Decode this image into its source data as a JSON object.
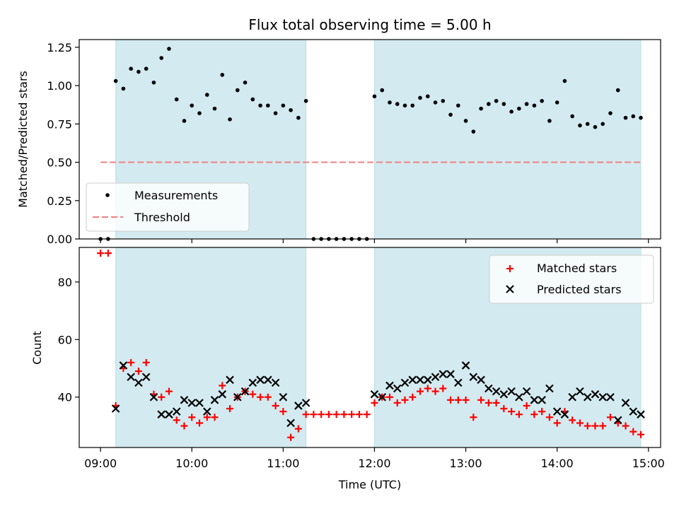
{
  "title": "Flux total observing time = 5.00 h",
  "colors": {
    "band": "#d3eaf0",
    "measurement": "#000000",
    "threshold": "#f08080",
    "matched": "#ff0000",
    "predicted": "#000000"
  },
  "chart_data": [
    {
      "type": "scatter",
      "panel": "top",
      "xlabel": "",
      "ylabel": "Matched/Predicted stars",
      "xlim": [
        "08:46",
        "15:08"
      ],
      "ylim": [
        0,
        1.3
      ],
      "yticks": [
        "0.00",
        "0.25",
        "0.50",
        "0.75",
        "1.00",
        "1.25"
      ],
      "shaded_intervals": [
        [
          "09:10",
          "11:15"
        ],
        [
          "12:00",
          "14:55"
        ]
      ],
      "legend_position": "lower-left",
      "series": [
        {
          "name": "Measurements",
          "marker": "dot",
          "x": [
            "09:00",
            "09:05",
            "09:10",
            "09:15",
            "09:20",
            "09:25",
            "09:30",
            "09:35",
            "09:40",
            "09:45",
            "09:50",
            "09:55",
            "10:00",
            "10:05",
            "10:10",
            "10:15",
            "10:20",
            "10:25",
            "10:30",
            "10:35",
            "10:40",
            "10:45",
            "10:50",
            "10:55",
            "11:00",
            "11:05",
            "11:10",
            "11:15",
            "11:20",
            "11:25",
            "11:30",
            "11:35",
            "11:40",
            "11:45",
            "11:50",
            "11:55",
            "12:00",
            "12:05",
            "12:10",
            "12:15",
            "12:20",
            "12:25",
            "12:30",
            "12:35",
            "12:40",
            "12:45",
            "12:50",
            "12:55",
            "13:00",
            "13:05",
            "13:10",
            "13:15",
            "13:20",
            "13:25",
            "13:30",
            "13:35",
            "13:40",
            "13:45",
            "13:50",
            "13:55",
            "14:00",
            "14:05",
            "14:10",
            "14:15",
            "14:20",
            "14:25",
            "14:30",
            "14:35",
            "14:40",
            "14:45",
            "14:50",
            "14:55"
          ],
          "y": [
            0.0,
            0.0,
            1.03,
            0.98,
            1.11,
            1.09,
            1.11,
            1.02,
            1.18,
            1.24,
            0.91,
            0.77,
            0.87,
            0.82,
            0.94,
            0.85,
            1.07,
            0.78,
            0.97,
            1.02,
            0.91,
            0.87,
            0.87,
            0.82,
            0.87,
            0.84,
            0.79,
            0.9,
            0.0,
            0.0,
            0.0,
            0.0,
            0.0,
            0.0,
            0.0,
            0.0,
            0.93,
            0.97,
            0.89,
            0.88,
            0.87,
            0.87,
            0.92,
            0.93,
            0.89,
            0.9,
            0.81,
            0.87,
            0.77,
            0.7,
            0.85,
            0.88,
            0.9,
            0.88,
            0.83,
            0.85,
            0.88,
            0.87,
            0.9,
            0.77,
            0.89,
            1.03,
            0.8,
            0.74,
            0.75,
            0.73,
            0.75,
            0.82,
            0.97,
            0.79,
            0.8,
            0.79
          ]
        },
        {
          "name": "Threshold",
          "style": "dashed",
          "x": [
            "09:00",
            "14:55"
          ],
          "y": [
            0.5,
            0.5
          ]
        }
      ]
    },
    {
      "type": "scatter",
      "panel": "bottom",
      "xlabel": "Time (UTC)",
      "ylabel": "Count",
      "xlim": [
        "08:46",
        "15:08"
      ],
      "ylim": [
        22.5,
        92
      ],
      "yticks": [
        "40",
        "60",
        "80"
      ],
      "xticks": [
        "09:00",
        "10:00",
        "11:00",
        "12:00",
        "13:00",
        "14:00",
        "15:00"
      ],
      "shaded_intervals": [
        [
          "09:10",
          "11:15"
        ],
        [
          "12:00",
          "14:55"
        ]
      ],
      "legend_position": "upper-right",
      "series": [
        {
          "name": "Matched stars",
          "marker": "plus",
          "x": [
            "09:00",
            "09:05",
            "09:10",
            "09:15",
            "09:20",
            "09:25",
            "09:30",
            "09:35",
            "09:40",
            "09:45",
            "09:50",
            "09:55",
            "10:00",
            "10:05",
            "10:10",
            "10:15",
            "10:20",
            "10:25",
            "10:30",
            "10:35",
            "10:40",
            "10:45",
            "10:50",
            "10:55",
            "11:00",
            "11:05",
            "11:10",
            "11:15",
            "11:20",
            "11:25",
            "11:30",
            "11:35",
            "11:40",
            "11:45",
            "11:50",
            "11:55",
            "12:00",
            "12:05",
            "12:10",
            "12:15",
            "12:20",
            "12:25",
            "12:30",
            "12:35",
            "12:40",
            "12:45",
            "12:50",
            "12:55",
            "13:00",
            "13:05",
            "13:10",
            "13:15",
            "13:20",
            "13:25",
            "13:30",
            "13:35",
            "13:40",
            "13:45",
            "13:50",
            "13:55",
            "14:00",
            "14:05",
            "14:10",
            "14:15",
            "14:20",
            "14:25",
            "14:30",
            "14:35",
            "14:40",
            "14:45",
            "14:50",
            "14:55"
          ],
          "y": [
            90,
            90,
            37,
            50,
            52,
            49,
            52,
            41,
            40,
            42,
            32,
            30,
            33,
            31,
            33,
            33,
            44,
            36,
            40,
            42,
            41,
            40,
            40,
            37,
            35,
            26,
            29,
            34,
            34,
            34,
            34,
            34,
            34,
            34,
            34,
            34,
            38,
            40,
            40,
            38,
            39,
            40,
            42,
            43,
            42,
            43,
            39,
            39,
            39,
            33,
            39,
            38,
            38,
            36,
            35,
            34,
            37,
            34,
            35,
            33,
            31,
            35,
            32,
            31,
            30,
            30,
            30,
            33,
            31,
            30,
            28,
            27
          ]
        },
        {
          "name": "Predicted stars",
          "marker": "x",
          "x": [
            "09:10",
            "09:15",
            "09:20",
            "09:25",
            "09:30",
            "09:35",
            "09:40",
            "09:45",
            "09:50",
            "09:55",
            "10:00",
            "10:05",
            "10:10",
            "10:15",
            "10:20",
            "10:25",
            "10:30",
            "10:35",
            "10:40",
            "10:45",
            "10:50",
            "10:55",
            "11:00",
            "11:05",
            "11:10",
            "11:15",
            "12:00",
            "12:05",
            "12:10",
            "12:15",
            "12:20",
            "12:25",
            "12:30",
            "12:35",
            "12:40",
            "12:45",
            "12:50",
            "12:55",
            "13:00",
            "13:05",
            "13:10",
            "13:15",
            "13:20",
            "13:25",
            "13:30",
            "13:35",
            "13:40",
            "13:45",
            "13:50",
            "13:55",
            "14:00",
            "14:05",
            "14:10",
            "14:15",
            "14:20",
            "14:25",
            "14:30",
            "14:35",
            "14:40",
            "14:45",
            "14:50",
            "14:55"
          ],
          "y": [
            36,
            51,
            47,
            45,
            47,
            40,
            34,
            34,
            35,
            39,
            38,
            38,
            35,
            39,
            41,
            46,
            40,
            42,
            45,
            46,
            46,
            45,
            40,
            31,
            37,
            38,
            41,
            40,
            44,
            43,
            45,
            46,
            46,
            46,
            47,
            48,
            48,
            45,
            51,
            47,
            46,
            43,
            42,
            41,
            42,
            40,
            42,
            39,
            39,
            43,
            35,
            34,
            40,
            42,
            40,
            41,
            40,
            40,
            32,
            38,
            35,
            34
          ]
        }
      ]
    }
  ]
}
